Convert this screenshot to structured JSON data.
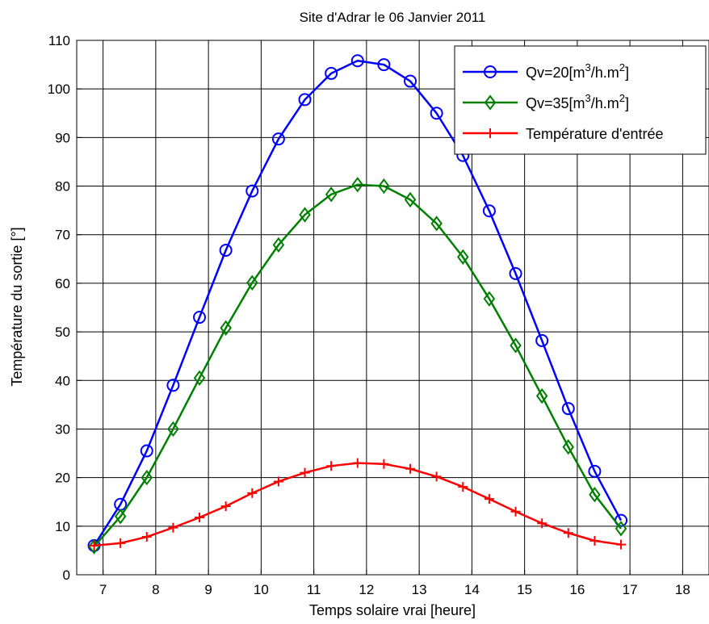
{
  "chart_data": {
    "type": "line",
    "title": "Site d'Adrar le 06 Janvier 2011",
    "xlabel": "Temps solaire vrai [heure]",
    "ylabel": "Température du sortie [°]",
    "xlim": [
      6.5,
      18.5
    ],
    "ylim": [
      0,
      110
    ],
    "xticks": [
      7,
      8,
      9,
      10,
      11,
      12,
      13,
      14,
      15,
      16,
      17,
      18
    ],
    "yticks": [
      0,
      10,
      20,
      30,
      40,
      50,
      60,
      70,
      80,
      90,
      100,
      110
    ],
    "grid": true,
    "legend_position": "top-right",
    "x": [
      6.83,
      7.33,
      7.83,
      8.33,
      8.83,
      9.33,
      9.83,
      10.33,
      10.83,
      11.33,
      11.83,
      12.33,
      12.83,
      13.33,
      13.83,
      14.33,
      14.83,
      15.33,
      15.83,
      16.33,
      16.83
    ],
    "series": [
      {
        "name": "Qv=20[m3/h.m2]",
        "legend_parts": [
          "Qv=20[m",
          "3",
          "/h.m",
          "2",
          "]"
        ],
        "color": "#0000ff",
        "marker": "circle",
        "values": [
          6,
          14.5,
          25.5,
          39,
          53,
          66.8,
          79,
          89.7,
          97.8,
          103.2,
          105.8,
          105,
          101.6,
          95,
          86.3,
          74.9,
          62,
          48.2,
          34.2,
          21.3,
          11.2
        ]
      },
      {
        "name": "Qv=35[m3/h.m2]",
        "legend_parts": [
          "Qv=35[m",
          "3",
          "/h.m",
          "2",
          "]"
        ],
        "color": "#008000",
        "marker": "diamond",
        "values": [
          5.8,
          12,
          20,
          30,
          40.5,
          50.8,
          60.1,
          67.9,
          74.1,
          78.3,
          80.3,
          80,
          77.2,
          72.3,
          65.4,
          56.8,
          47.2,
          36.8,
          26.3,
          16.5,
          9.5
        ]
      },
      {
        "name": "Température d'entrée",
        "legend_parts": [
          "Température d'entrée"
        ],
        "color": "#ff0000",
        "marker": "plus",
        "values": [
          6,
          6.5,
          7.8,
          9.7,
          11.8,
          14.1,
          16.8,
          19.2,
          21,
          22.4,
          23,
          22.8,
          21.8,
          20.2,
          18.1,
          15.6,
          13,
          10.6,
          8.6,
          7,
          6.2
        ]
      }
    ]
  }
}
